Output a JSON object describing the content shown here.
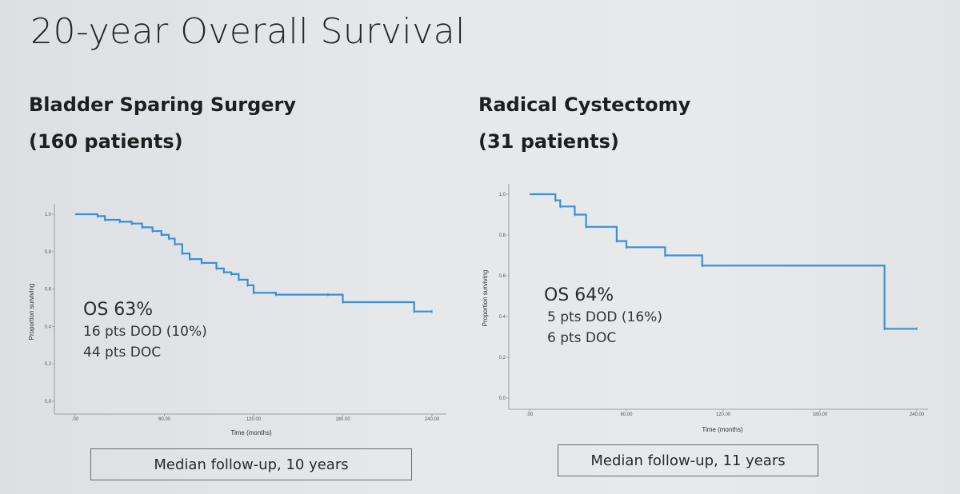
{
  "slide": {
    "title": "20-year Overall Survival"
  },
  "left": {
    "heading": "Bladder Sparing Surgery",
    "patients": "(160 patients)",
    "os": "OS 63%",
    "line1": "16 pts DOD (10%)",
    "line2": "44 pts DOC",
    "followup": "Median follow-up, 10 years"
  },
  "right": {
    "heading": "Radical Cystectomy",
    "patients": "(31 patients)",
    "os": "OS 64%",
    "line1": "5 pts DOD (16%)",
    "line2": "6 pts DOC",
    "followup": "Median follow-up, 11 years"
  },
  "colors": {
    "curve": "#3a8fd8",
    "axis": "#888888"
  },
  "chart_data": [
    {
      "type": "line",
      "step": true,
      "xlabel": "Time (months)",
      "ylabel": "Proportion surviving",
      "xlim": [
        0,
        240
      ],
      "ylim": [
        0,
        1.0
      ],
      "xticks": [
        ".00",
        "60.00",
        "120.00",
        "180.00",
        "240.00"
      ],
      "yticks": [
        "0.0",
        "0.2",
        "0.4",
        "0.6",
        "0.8",
        "1.0"
      ],
      "grid": false,
      "series": [
        {
          "x": [
            0,
            15,
            20,
            30,
            38,
            45,
            52,
            58,
            63,
            67,
            72,
            77,
            85,
            95,
            100,
            105,
            110,
            116,
            120,
            135,
            170,
            180,
            228,
            240
          ],
          "y": [
            1.0,
            0.99,
            0.97,
            0.96,
            0.95,
            0.93,
            0.91,
            0.89,
            0.87,
            0.84,
            0.79,
            0.76,
            0.74,
            0.71,
            0.69,
            0.68,
            0.65,
            0.62,
            0.58,
            0.57,
            0.57,
            0.53,
            0.48,
            0.48
          ]
        }
      ]
    },
    {
      "type": "line",
      "step": true,
      "xlabel": "Time (months)",
      "ylabel": "Proportion surviving",
      "xlim": [
        0,
        240
      ],
      "ylim": [
        0,
        1.0
      ],
      "xticks": [
        ".00",
        "60.00",
        "120.00",
        "180.00",
        "240.00"
      ],
      "yticks": [
        "0.0",
        "0.2",
        "0.4",
        "0.6",
        "0.8",
        "1.0"
      ],
      "grid": false,
      "series": [
        {
          "x": [
            0,
            16,
            19,
            28,
            35,
            54,
            60,
            84,
            107,
            220,
            240
          ],
          "y": [
            1.0,
            0.97,
            0.94,
            0.9,
            0.84,
            0.77,
            0.74,
            0.7,
            0.65,
            0.34,
            0.34
          ]
        }
      ]
    }
  ]
}
